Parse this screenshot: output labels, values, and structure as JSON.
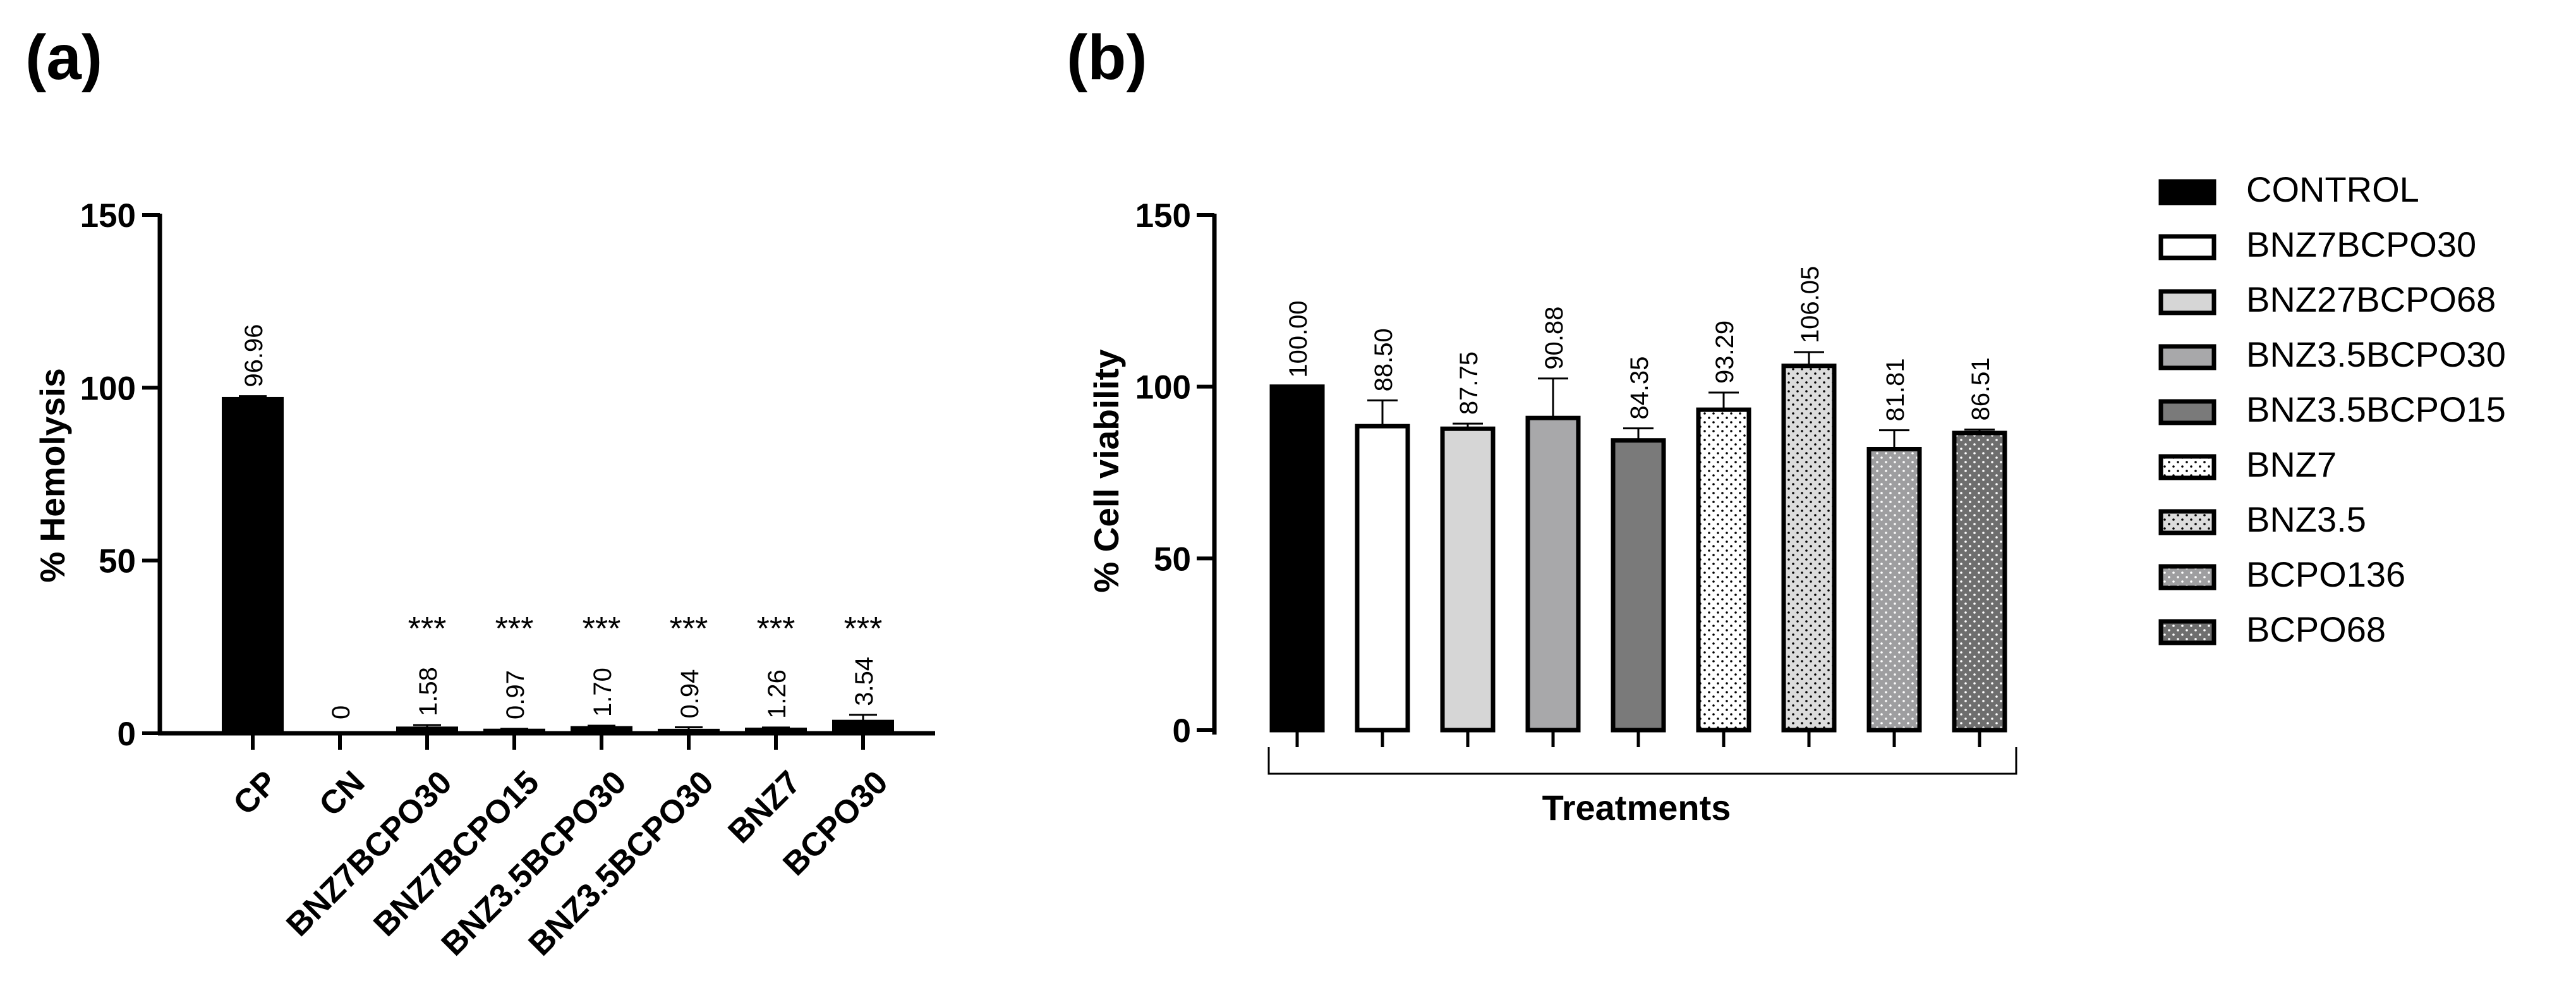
{
  "chart_data": [
    {
      "panel_label": "(a)",
      "type": "bar",
      "title": "",
      "xlabel": "",
      "ylabel": "% Hemolysis",
      "ylim": [
        0,
        150
      ],
      "yticks": [
        "0",
        "50",
        "100",
        "150"
      ],
      "grid": false,
      "categories": [
        "CP",
        "CN",
        "BNZ7BCPO30",
        "BNZ7BCPO15",
        "BNZ3.5BCPO30",
        "BNZ3.5BCPO30",
        "BNZ7",
        "BCPO30"
      ],
      "values": [
        96.96,
        0,
        1.58,
        0.97,
        1.7,
        0.94,
        1.26,
        3.54
      ],
      "errors": [
        0.6,
        0,
        0.8,
        0.3,
        0.5,
        0.8,
        0.4,
        1.8
      ],
      "value_labels": [
        "96.96",
        "0",
        "1.58",
        "0.97",
        "1.70",
        "0.94",
        "1.26",
        "3.54"
      ],
      "significance": [
        "",
        "",
        "***",
        "***",
        "***",
        "***",
        "***",
        "***"
      ],
      "bar_colors": [
        "#000000",
        "#000000",
        "#000000",
        "#000000",
        "#000000",
        "#000000",
        "#000000",
        "#000000"
      ]
    },
    {
      "panel_label": "(b)",
      "type": "bar",
      "title": "",
      "xlabel": "Treatments",
      "ylabel": "% Cell viability",
      "ylim": [
        0,
        150
      ],
      "yticks": [
        "0",
        "50",
        "100",
        "150"
      ],
      "grid": false,
      "legend_position": "right",
      "categories": [
        "CONTROL",
        "BNZ7BCPO30",
        "BNZ27BCPO68",
        "BNZ3.5BCPO30",
        "BNZ3.5BCPO15",
        "BNZ7",
        "BNZ3.5",
        "BCPO136",
        "BCPO68"
      ],
      "values": [
        100.0,
        88.5,
        87.75,
        90.88,
        84.35,
        93.29,
        106.05,
        81.81,
        86.51
      ],
      "errors": [
        0,
        7.5,
        1.5,
        11.5,
        3.5,
        5.0,
        4.0,
        5.5,
        1.0
      ],
      "value_labels": [
        "100.00",
        "88.50",
        "87.75",
        "90.88",
        "84.35",
        "93.29",
        "106.05",
        "81.81",
        "86.51"
      ],
      "fill_colors": [
        "#000000",
        "#ffffff",
        "#d6d6d6",
        "#a8a8aa",
        "#7a7a7a",
        "#ffffff",
        "#dcdcdc",
        "#9e9ea0",
        "#6e6e6e"
      ],
      "patterns": [
        "solid",
        "solid",
        "solid",
        "solid",
        "solid",
        "dots-dark",
        "dots-dark",
        "dots-light",
        "dots-light"
      ]
    }
  ]
}
